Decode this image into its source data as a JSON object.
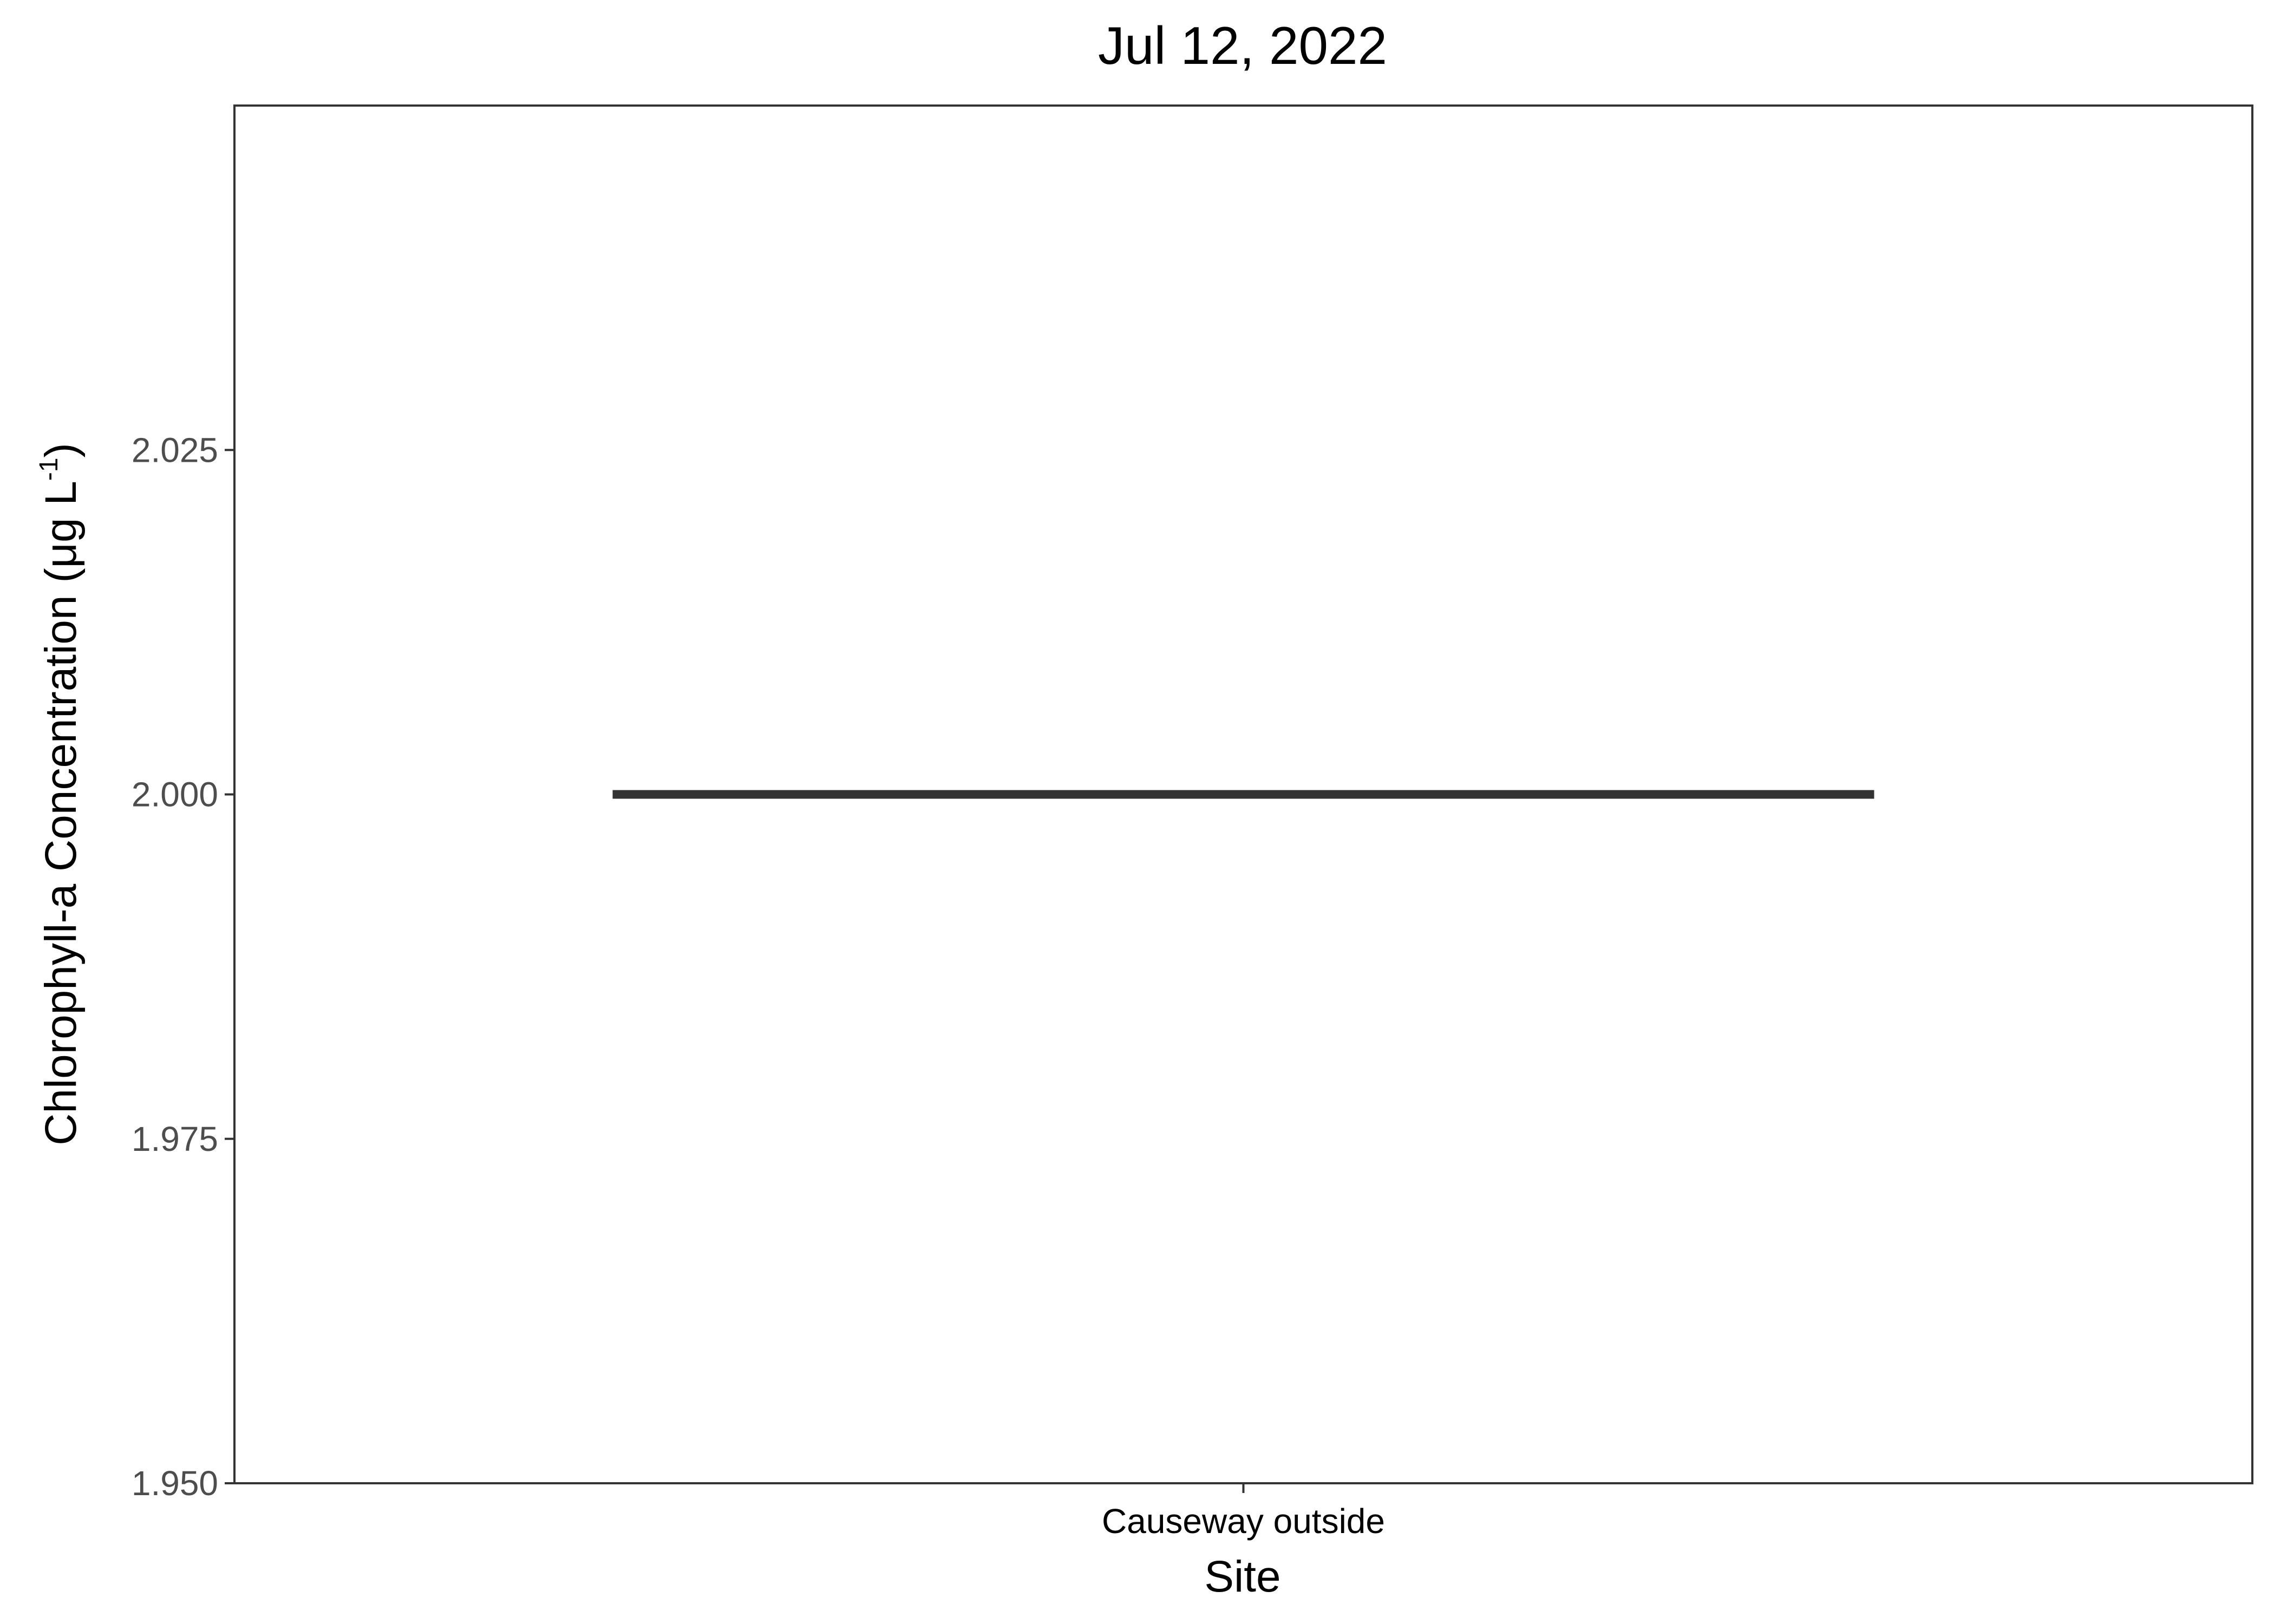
{
  "chart_data": {
    "type": "box",
    "title": "Jul 12, 2022",
    "xlabel": "Site",
    "ylabel_main": "Chlorophyll-a Concentration (μg L",
    "ylabel_sup": "-1",
    "ylabel_close": ")",
    "categories": [
      "Causeway outside"
    ],
    "values": [
      2.0
    ],
    "ylim": [
      1.95,
      2.05
    ],
    "yticks": [
      1.95,
      1.975,
      2.0,
      2.025
    ],
    "ytick_labels": [
      "1.950",
      "1.975",
      "2.000",
      "2.025"
    ],
    "grid": false,
    "legend": "none",
    "colors": {
      "median_line": "#333333",
      "panel_border": "#333333",
      "tick_text": "#4d4d4d"
    }
  }
}
